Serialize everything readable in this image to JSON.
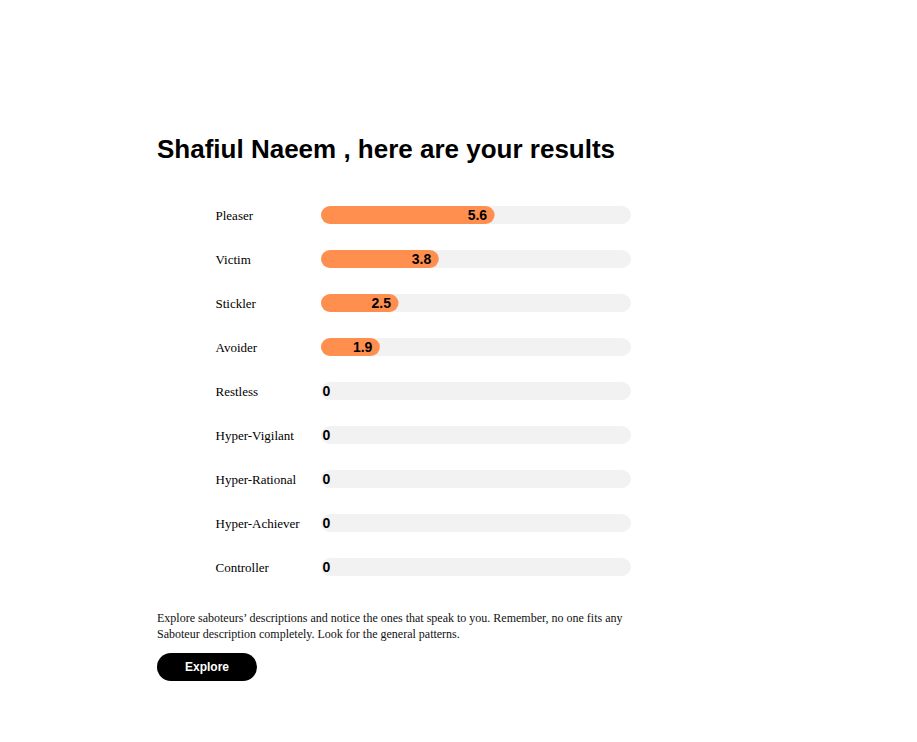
{
  "chart_data": {
    "type": "bar",
    "orientation": "horizontal",
    "title": "Shafiul Naeem , here are your results",
    "categories": [
      "Pleaser",
      "Victim",
      "Stickler",
      "Avoider",
      "Restless",
      "Hyper-Vigilant",
      "Hyper-Rational",
      "Hyper-Achiever",
      "Controller"
    ],
    "values": [
      5.6,
      3.8,
      2.5,
      1.9,
      0,
      0,
      0,
      0,
      0
    ],
    "color": "#ff8f4f",
    "xlim": [
      0,
      10
    ],
    "data_labels": true,
    "tick_labels": "y",
    "caption": "Explore saboteurs’ descriptions and notice the ones that speak to you. Remember, no one fits any Saboteur description completely. Look for the general patterns.",
    "button": "Explore"
  }
}
